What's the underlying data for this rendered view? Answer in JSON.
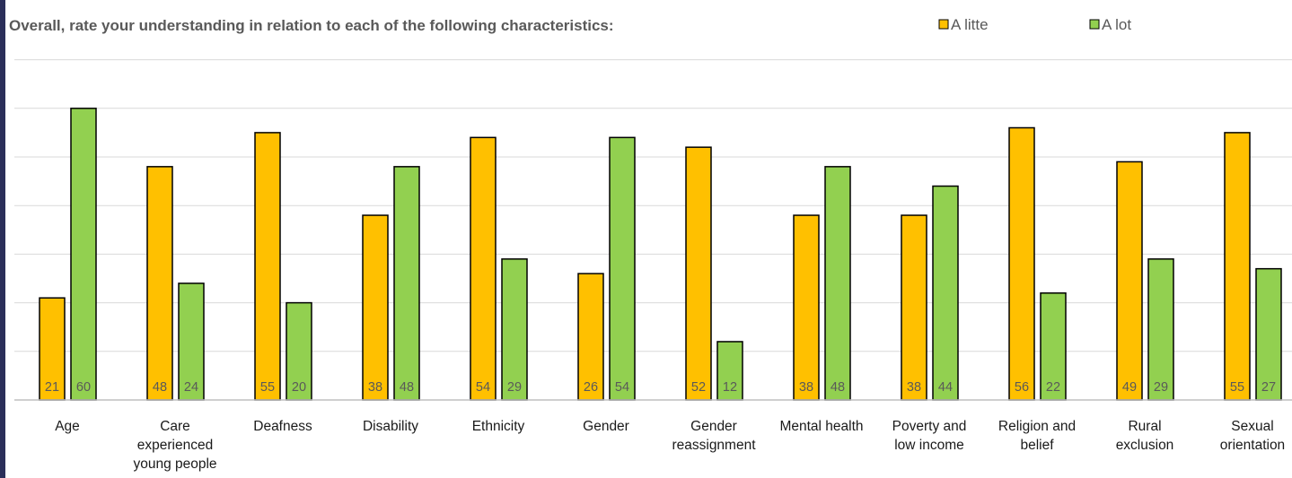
{
  "chart_data": {
    "type": "bar",
    "title": "Overall, rate your understanding in relation to each of the following characteristics:",
    "xlabel": "",
    "ylabel": "",
    "ylim": [
      0,
      70
    ],
    "grid": true,
    "legend_position": "top-right",
    "categories": [
      [
        "Age"
      ],
      [
        "Care",
        "experienced",
        "young people"
      ],
      [
        "Deafness"
      ],
      [
        "Disability"
      ],
      [
        "Ethnicity"
      ],
      [
        "Gender"
      ],
      [
        "Gender",
        "reassignment"
      ],
      [
        "Mental health"
      ],
      [
        "Poverty and",
        "low income"
      ],
      [
        "Religion and",
        "belief"
      ],
      [
        "Rural",
        "exclusion"
      ],
      [
        "Sexual",
        "orientation"
      ]
    ],
    "series": [
      {
        "name": "A litte",
        "color": "#FFC000",
        "values": [
          21,
          48,
          55,
          38,
          54,
          26,
          52,
          38,
          38,
          56,
          49,
          55
        ]
      },
      {
        "name": "A lot",
        "color": "#92D050",
        "values": [
          60,
          24,
          20,
          48,
          29,
          54,
          12,
          48,
          44,
          22,
          29,
          27
        ]
      }
    ]
  }
}
